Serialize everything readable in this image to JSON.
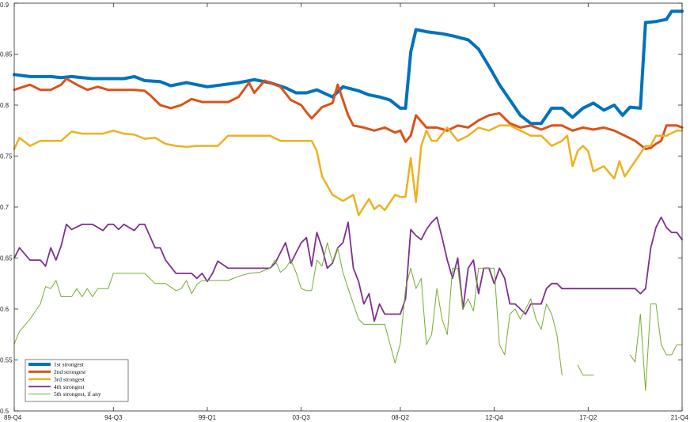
{
  "chart_data": {
    "type": "line",
    "title": "",
    "xlabel": "",
    "ylabel": "",
    "ylim": [
      0.5,
      0.9
    ],
    "yticks": [
      0.5,
      0.55,
      0.6,
      0.65,
      0.7,
      0.75,
      0.8,
      0.85,
      0.9
    ],
    "ytick_labels": [
      "0.5",
      "0.55",
      "0.6",
      "0.65",
      "0.7",
      "0.75",
      "0.8",
      "0.85",
      "0.9"
    ],
    "xlim": [
      1989.75,
      2021.75
    ],
    "xticks": [
      1989.75,
      1994.5,
      1999.0,
      2003.5,
      2008.25,
      2012.75,
      2017.25,
      2021.75
    ],
    "xtick_labels": [
      "89-Q4",
      "94-Q3",
      "99-Q1",
      "03-Q3",
      "08-Q2",
      "12-Q4",
      "17-Q2",
      "21-Q4"
    ],
    "grid": false,
    "legend_position": "bottom-left",
    "series": [
      {
        "name": "1st strongest",
        "color": "#0072BD",
        "width": 4,
        "x": [
          1989.75,
          1990.5,
          1991.5,
          1992.0,
          1992.5,
          1993.0,
          1993.5,
          1994.0,
          1995.0,
          1995.5,
          1996.0,
          1996.75,
          1997.25,
          1998.0,
          1999.0,
          2000.5,
          2001.25,
          2002.0,
          2002.75,
          2003.25,
          2003.75,
          2004.25,
          2005.0,
          2005.5,
          2006.25,
          2006.75,
          2007.25,
          2007.75,
          2008.25,
          2008.5,
          2008.75,
          2009.0,
          2009.5,
          2010.25,
          2010.75,
          2011.5,
          2012.0,
          2012.5,
          2013.0,
          2013.5,
          2014.0,
          2014.5,
          2015.0,
          2015.5,
          2016.0,
          2016.5,
          2017.0,
          2017.5,
          2018.0,
          2018.5,
          2018.9,
          2019.25,
          2019.75,
          2020.0,
          2020.5,
          2021.0,
          2021.25,
          2021.75
        ],
        "y": [
          0.83,
          0.828,
          0.828,
          0.827,
          0.828,
          0.827,
          0.826,
          0.826,
          0.826,
          0.828,
          0.824,
          0.823,
          0.819,
          0.822,
          0.818,
          0.822,
          0.825,
          0.822,
          0.817,
          0.812,
          0.812,
          0.815,
          0.808,
          0.818,
          0.814,
          0.81,
          0.808,
          0.805,
          0.797,
          0.797,
          0.852,
          0.874,
          0.872,
          0.87,
          0.868,
          0.864,
          0.855,
          0.838,
          0.82,
          0.805,
          0.79,
          0.782,
          0.782,
          0.797,
          0.797,
          0.788,
          0.797,
          0.802,
          0.795,
          0.8,
          0.79,
          0.798,
          0.797,
          0.881,
          0.882,
          0.884,
          0.892,
          0.892
        ]
      },
      {
        "name": "2nd strongest",
        "color": "#D95319",
        "width": 3,
        "x": [
          1989.75,
          1990.5,
          1991.0,
          1991.5,
          1992.0,
          1992.25,
          1992.75,
          1993.25,
          1993.75,
          1994.25,
          1995.0,
          1995.5,
          1996.0,
          1996.25,
          1996.75,
          1997.25,
          1997.75,
          1998.25,
          1998.75,
          1999.25,
          2000.0,
          2000.5,
          2001.0,
          2001.25,
          2001.75,
          2002.0,
          2002.5,
          2003.0,
          2003.5,
          2003.75,
          2004.0,
          2004.5,
          2005.0,
          2005.25,
          2005.75,
          2006.0,
          2006.5,
          2007.0,
          2007.5,
          2008.0,
          2008.25,
          2008.5,
          2008.75,
          2009.0,
          2009.5,
          2010.0,
          2010.5,
          2011.0,
          2011.5,
          2012.0,
          2012.5,
          2013.0,
          2013.5,
          2014.0,
          2014.5,
          2015.0,
          2015.5,
          2016.0,
          2016.5,
          2017.0,
          2017.5,
          2018.0,
          2018.5,
          2019.0,
          2019.5,
          2020.0,
          2020.25,
          2020.5,
          2020.75,
          2021.0,
          2021.5,
          2021.75
        ],
        "y": [
          0.815,
          0.82,
          0.815,
          0.815,
          0.82,
          0.826,
          0.82,
          0.815,
          0.818,
          0.815,
          0.815,
          0.815,
          0.814,
          0.81,
          0.8,
          0.797,
          0.8,
          0.806,
          0.803,
          0.803,
          0.803,
          0.808,
          0.822,
          0.812,
          0.824,
          0.822,
          0.818,
          0.805,
          0.8,
          0.793,
          0.787,
          0.798,
          0.802,
          0.82,
          0.79,
          0.78,
          0.778,
          0.775,
          0.778,
          0.773,
          0.775,
          0.764,
          0.77,
          0.79,
          0.778,
          0.778,
          0.775,
          0.78,
          0.778,
          0.785,
          0.79,
          0.792,
          0.782,
          0.778,
          0.78,
          0.776,
          0.78,
          0.78,
          0.775,
          0.778,
          0.776,
          0.778,
          0.775,
          0.77,
          0.765,
          0.757,
          0.758,
          0.762,
          0.765,
          0.78,
          0.78,
          0.778
        ]
      },
      {
        "name": "3rd strongest",
        "color": "#EDB120",
        "width": 2.5,
        "x": [
          1989.75,
          1990.0,
          1990.5,
          1991.0,
          1991.5,
          1992.0,
          1992.5,
          1993.0,
          1993.5,
          1994.0,
          1994.5,
          1995.0,
          1995.5,
          1996.0,
          1996.5,
          1997.0,
          1997.5,
          1998.0,
          1998.5,
          1999.0,
          1999.5,
          2000.0,
          2000.5,
          2001.0,
          2001.5,
          2002.0,
          2002.5,
          2003.0,
          2003.5,
          2004.0,
          2004.25,
          2004.5,
          2005.0,
          2005.5,
          2006.0,
          2006.25,
          2006.5,
          2006.75,
          2007.0,
          2007.25,
          2007.5,
          2008.0,
          2008.25,
          2008.5,
          2008.75,
          2009.0,
          2009.25,
          2009.5,
          2009.75,
          2010.0,
          2010.5,
          2011.0,
          2011.5,
          2012.0,
          2012.5,
          2013.0,
          2013.5,
          2014.0,
          2014.5,
          2015.0,
          2015.5,
          2016.0,
          2016.25,
          2016.5,
          2016.75,
          2017.0,
          2017.25,
          2017.5,
          2018.0,
          2018.5,
          2018.75,
          2019.0,
          2019.5,
          2020.0,
          2020.25,
          2020.5,
          2021.0,
          2021.5,
          2021.75
        ],
        "y": [
          0.757,
          0.768,
          0.76,
          0.765,
          0.765,
          0.765,
          0.774,
          0.772,
          0.772,
          0.772,
          0.775,
          0.772,
          0.771,
          0.767,
          0.768,
          0.762,
          0.76,
          0.759,
          0.76,
          0.76,
          0.76,
          0.77,
          0.77,
          0.77,
          0.77,
          0.77,
          0.765,
          0.765,
          0.765,
          0.765,
          0.755,
          0.73,
          0.712,
          0.706,
          0.712,
          0.692,
          0.7,
          0.708,
          0.698,
          0.702,
          0.697,
          0.712,
          0.71,
          0.71,
          0.748,
          0.705,
          0.76,
          0.775,
          0.765,
          0.765,
          0.778,
          0.765,
          0.77,
          0.778,
          0.775,
          0.78,
          0.78,
          0.775,
          0.77,
          0.77,
          0.76,
          0.765,
          0.77,
          0.74,
          0.755,
          0.76,
          0.755,
          0.735,
          0.74,
          0.728,
          0.745,
          0.73,
          0.745,
          0.76,
          0.76,
          0.77,
          0.77,
          0.775,
          0.775
        ]
      },
      {
        "name": "4th strongest",
        "color": "#7E2F8E",
        "width": 1.8,
        "x": [
          1989.75,
          1990.0,
          1990.5,
          1991.0,
          1991.25,
          1991.5,
          1991.75,
          1992.0,
          1992.25,
          1992.5,
          1993.0,
          1993.5,
          1994.0,
          1994.25,
          1994.5,
          1994.75,
          1995.0,
          1995.5,
          1995.75,
          1996.0,
          1996.5,
          1996.75,
          1997.0,
          1997.5,
          1998.0,
          1998.25,
          1998.5,
          1998.75,
          1999.0,
          1999.25,
          1999.5,
          2000.0,
          2000.5,
          2001.0,
          2001.25,
          2001.5,
          2001.75,
          2002.0,
          2002.25,
          2002.5,
          2002.75,
          2003.0,
          2003.25,
          2003.5,
          2003.75,
          2004.0,
          2004.25,
          2004.5,
          2004.75,
          2005.0,
          2005.25,
          2005.5,
          2005.75,
          2006.0,
          2006.25,
          2006.5,
          2006.75,
          2007.0,
          2007.25,
          2007.5,
          2007.75,
          2008.0,
          2008.25,
          2008.5,
          2008.75,
          2009.0,
          2009.25,
          2009.5,
          2009.75,
          2010.0,
          2010.25,
          2010.5,
          2010.75,
          2011.0,
          2011.25,
          2011.5,
          2011.75,
          2012.0,
          2012.25,
          2012.5,
          2012.75,
          2013.0,
          2013.25,
          2013.5,
          2013.75,
          2014.0,
          2014.25,
          2014.5,
          2014.75,
          2015.0,
          2015.25,
          2015.5,
          2015.75,
          2016.0,
          2016.5,
          2017.0,
          2017.5,
          2018.0,
          2018.5,
          2019.0,
          2019.5,
          2019.75,
          2020.0,
          2020.25,
          2020.5,
          2020.75,
          2021.0,
          2021.25,
          2021.5,
          2021.75
        ],
        "y": [
          0.65,
          0.66,
          0.648,
          0.648,
          0.642,
          0.66,
          0.648,
          0.662,
          0.683,
          0.678,
          0.683,
          0.683,
          0.677,
          0.683,
          0.683,
          0.678,
          0.683,
          0.677,
          0.683,
          0.683,
          0.66,
          0.66,
          0.648,
          0.635,
          0.635,
          0.635,
          0.63,
          0.635,
          0.627,
          0.635,
          0.647,
          0.64,
          0.64,
          0.64,
          0.64,
          0.64,
          0.64,
          0.64,
          0.645,
          0.655,
          0.665,
          0.645,
          0.655,
          0.665,
          0.67,
          0.642,
          0.675,
          0.66,
          0.64,
          0.645,
          0.66,
          0.665,
          0.685,
          0.64,
          0.627,
          0.605,
          0.615,
          0.588,
          0.605,
          0.595,
          0.595,
          0.595,
          0.595,
          0.61,
          0.678,
          0.672,
          0.668,
          0.678,
          0.685,
          0.69,
          0.67,
          0.648,
          0.63,
          0.65,
          0.6,
          0.64,
          0.648,
          0.615,
          0.64,
          0.64,
          0.625,
          0.64,
          0.63,
          0.605,
          0.605,
          0.6,
          0.595,
          0.605,
          0.605,
          0.605,
          0.62,
          0.625,
          0.625,
          0.62,
          0.62,
          0.62,
          0.62,
          0.62,
          0.62,
          0.62,
          0.62,
          0.615,
          0.62,
          0.66,
          0.68,
          0.69,
          0.68,
          0.675,
          0.675,
          0.668
        ]
      },
      {
        "name": "5th strongest, if any",
        "color": "#77AC30",
        "width": 1,
        "x": [
          1989.75,
          1990.0,
          1990.5,
          1991.0,
          1991.25,
          1991.5,
          1991.75,
          1992.0,
          1992.25,
          1992.5,
          1992.75,
          1993.0,
          1993.25,
          1993.5,
          1993.75,
          1994.0,
          1994.25,
          1994.5,
          1994.75,
          1995.0,
          1995.5,
          1996.0,
          1996.5,
          1997.0,
          1997.5,
          1997.75,
          1998.0,
          1998.25,
          1998.5,
          1998.75,
          1999.0,
          1999.5,
          2000.0,
          2000.5,
          2001.0,
          2001.5,
          2002.0,
          2002.25,
          2002.5,
          2002.75,
          2003.0,
          2003.25,
          2003.5,
          2003.75,
          2004.0,
          2004.25,
          2004.5,
          2004.75,
          2005.0,
          2005.25,
          2005.5,
          2005.75,
          2006.0,
          2006.25,
          2006.5,
          2006.75,
          2007.0,
          2007.5,
          2008.0,
          2008.25,
          2008.5,
          2008.75,
          2009.0,
          2009.25,
          2009.5,
          2009.75,
          2010.0,
          2010.25,
          2010.5,
          2010.75,
          2011.0,
          2011.25,
          2011.5,
          2011.75,
          2012.0,
          2012.25,
          2012.5,
          2012.75,
          2013.0,
          2013.25,
          2013.5,
          2013.75,
          2014.0,
          2014.25,
          2014.5,
          2014.75,
          2015.0,
          2015.25,
          2015.5,
          2015.75,
          2016.0,
          null,
          2016.75,
          2017.0,
          2017.25,
          2017.5,
          null,
          2019.25,
          2019.5,
          2019.75,
          2020.0,
          2020.25,
          2020.5,
          2020.75,
          2021.0,
          2021.25,
          2021.5,
          2021.75
        ],
        "y": [
          0.566,
          0.578,
          0.59,
          0.605,
          0.622,
          0.62,
          0.628,
          0.612,
          0.612,
          0.612,
          0.62,
          0.612,
          0.62,
          0.612,
          0.62,
          0.62,
          0.62,
          0.635,
          0.635,
          0.635,
          0.635,
          0.635,
          0.625,
          0.625,
          0.618,
          0.62,
          0.628,
          0.615,
          0.624,
          0.628,
          0.628,
          0.628,
          0.628,
          0.632,
          0.635,
          0.636,
          0.64,
          0.648,
          0.636,
          0.64,
          0.648,
          0.636,
          0.62,
          0.618,
          0.618,
          0.648,
          0.642,
          0.665,
          0.646,
          0.66,
          0.636,
          0.62,
          0.605,
          0.59,
          0.585,
          0.585,
          0.585,
          0.585,
          0.547,
          0.566,
          0.62,
          0.64,
          0.62,
          0.63,
          0.565,
          0.575,
          0.62,
          0.59,
          0.575,
          0.64,
          0.64,
          0.6,
          0.61,
          0.598,
          0.64,
          0.64,
          0.64,
          0.64,
          0.565,
          0.555,
          0.595,
          0.6,
          0.59,
          0.6,
          0.61,
          0.59,
          0.58,
          0.605,
          0.595,
          0.575,
          0.535,
          null,
          0.545,
          0.535,
          0.535,
          0.535,
          null,
          0.555,
          0.548,
          0.595,
          0.52,
          0.605,
          0.605,
          0.565,
          0.555,
          0.555,
          0.565,
          0.565
        ]
      }
    ]
  }
}
